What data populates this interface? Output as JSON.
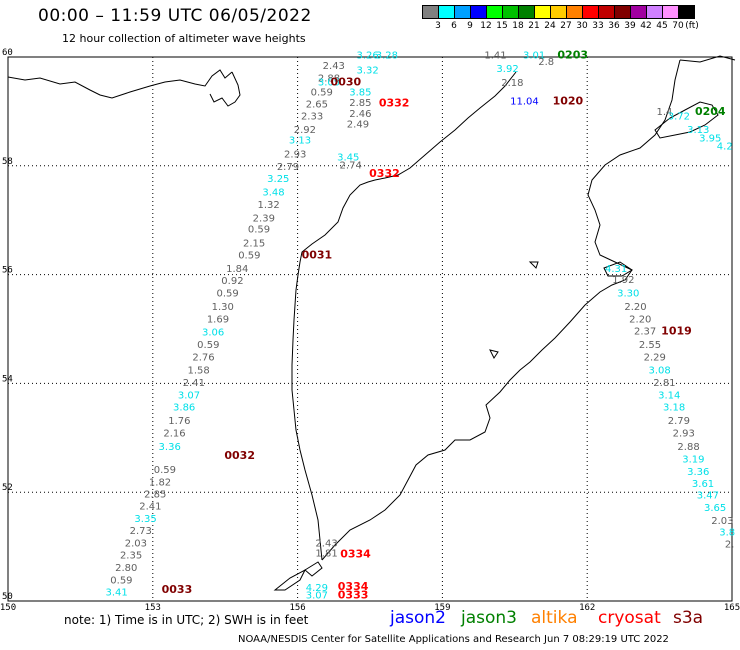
{
  "title": "00:00 – 11:59 UTC 06/05/2022",
  "subtitle": "12 hour collection of altimeter wave heights",
  "legend": {
    "unit": "(ft)",
    "bins": [
      {
        "label": "3",
        "color": "#808080"
      },
      {
        "label": "6",
        "color": "#00ffff"
      },
      {
        "label": "9",
        "color": "#00a0ff"
      },
      {
        "label": "12",
        "color": "#0000ff"
      },
      {
        "label": "15",
        "color": "#00ff00"
      },
      {
        "label": "18",
        "color": "#00c000"
      },
      {
        "label": "21",
        "color": "#008000"
      },
      {
        "label": "24",
        "color": "#ffff00"
      },
      {
        "label": "27",
        "color": "#ffcc00"
      },
      {
        "label": "30",
        "color": "#ff8000"
      },
      {
        "label": "33",
        "color": "#ff0000"
      },
      {
        "label": "36",
        "color": "#c00000"
      },
      {
        "label": "39",
        "color": "#800000"
      },
      {
        "label": "42",
        "color": "#a000a0"
      },
      {
        "label": "45",
        "color": "#d080ff"
      },
      {
        "label": "70",
        "color": "#ff90ff"
      },
      {
        "label": "",
        "color": "#000000"
      }
    ]
  },
  "axes": {
    "lon": {
      "min": 150,
      "max": 165,
      "ticks": [
        "150",
        "153",
        "156",
        "159",
        "162",
        "165"
      ]
    },
    "lat": {
      "min": 50,
      "max": 60,
      "ticks": [
        "60",
        "58",
        "56",
        "54",
        "52",
        "50"
      ]
    }
  },
  "colors": {
    "gray": "#606060",
    "cyan": "#00e0e8",
    "blue": "#0000ff",
    "green": "#008000",
    "maroon": "#800000",
    "red": "#ff0000"
  },
  "chart_data": {
    "type": "scatter",
    "time_labels": [
      {
        "text": "0030",
        "lon": 157.0,
        "lat": 59.48,
        "color": "maroon"
      },
      {
        "text": "0332",
        "lon": 158.0,
        "lat": 59.09,
        "color": "red"
      },
      {
        "text": "0203",
        "lon": 161.7,
        "lat": 59.97,
        "color": "green"
      },
      {
        "text": "1020",
        "lon": 161.6,
        "lat": 59.13,
        "color": "maroon"
      },
      {
        "text": "0204",
        "lon": 164.55,
        "lat": 58.93,
        "color": "green"
      },
      {
        "text": "0332",
        "lon": 157.8,
        "lat": 57.79,
        "color": "red"
      },
      {
        "text": "0031",
        "lon": 156.4,
        "lat": 56.3,
        "color": "maroon"
      },
      {
        "text": "1019",
        "lon": 163.85,
        "lat": 54.9,
        "color": "maroon"
      },
      {
        "text": "0032",
        "lon": 154.8,
        "lat": 52.61,
        "color": "maroon"
      },
      {
        "text": "0334",
        "lon": 157.2,
        "lat": 50.8,
        "color": "red"
      },
      {
        "text": "0033",
        "lon": 153.5,
        "lat": 50.15,
        "color": "maroon"
      },
      {
        "text": "0334",
        "lon": 157.15,
        "lat": 50.2,
        "color": "red"
      },
      {
        "text": "0333",
        "lon": 157.15,
        "lat": 50.05,
        "color": "red"
      }
    ],
    "values": [
      {
        "text": "3.26",
        "lon": 157.45,
        "lat": 59.97,
        "color": "cyan"
      },
      {
        "text": "3.28",
        "lon": 157.85,
        "lat": 59.97,
        "color": "cyan"
      },
      {
        "text": "2.43",
        "lon": 156.75,
        "lat": 59.78,
        "color": "gray"
      },
      {
        "text": "3.32",
        "lon": 157.45,
        "lat": 59.7,
        "color": "cyan"
      },
      {
        "text": "2.88",
        "lon": 156.65,
        "lat": 59.55,
        "color": "gray"
      },
      {
        "text": "3.05",
        "lon": 156.65,
        "lat": 59.48,
        "color": "cyan"
      },
      {
        "text": "0.59",
        "lon": 156.5,
        "lat": 59.29,
        "color": "gray"
      },
      {
        "text": "3.85",
        "lon": 157.3,
        "lat": 59.29,
        "color": "cyan"
      },
      {
        "text": "2.65",
        "lon": 156.4,
        "lat": 59.07,
        "color": "gray"
      },
      {
        "text": "2.85",
        "lon": 157.3,
        "lat": 59.1,
        "color": "gray"
      },
      {
        "text": "2.46",
        "lon": 157.3,
        "lat": 58.9,
        "color": "gray"
      },
      {
        "text": "2.33",
        "lon": 156.3,
        "lat": 58.85,
        "color": "gray"
      },
      {
        "text": "2.49",
        "lon": 157.25,
        "lat": 58.7,
        "color": "gray"
      },
      {
        "text": "2.92",
        "lon": 156.15,
        "lat": 58.6,
        "color": "gray"
      },
      {
        "text": "3.13",
        "lon": 156.05,
        "lat": 58.41,
        "color": "cyan"
      },
      {
        "text": "2.93",
        "lon": 155.95,
        "lat": 58.15,
        "color": "gray"
      },
      {
        "text": "3.45",
        "lon": 157.05,
        "lat": 58.1,
        "color": "cyan"
      },
      {
        "text": "2.74",
        "lon": 157.1,
        "lat": 57.95,
        "color": "gray"
      },
      {
        "text": "2.79",
        "lon": 155.8,
        "lat": 57.92,
        "color": "gray"
      },
      {
        "text": "3.25",
        "lon": 155.6,
        "lat": 57.7,
        "color": "cyan"
      },
      {
        "text": "3.48",
        "lon": 155.5,
        "lat": 57.45,
        "color": "cyan"
      },
      {
        "text": "1.32",
        "lon": 155.4,
        "lat": 57.22,
        "color": "gray"
      },
      {
        "text": "2.39",
        "lon": 155.3,
        "lat": 56.98,
        "color": "gray"
      },
      {
        "text": "0.59",
        "lon": 155.2,
        "lat": 56.77,
        "color": "gray"
      },
      {
        "text": "2.15",
        "lon": 155.1,
        "lat": 56.52,
        "color": "gray"
      },
      {
        "text": "0.59",
        "lon": 155.0,
        "lat": 56.3,
        "color": "gray"
      },
      {
        "text": "1.84",
        "lon": 154.75,
        "lat": 56.05,
        "color": "gray"
      },
      {
        "text": "0.92",
        "lon": 154.65,
        "lat": 55.83,
        "color": "gray"
      },
      {
        "text": "0.59",
        "lon": 154.55,
        "lat": 55.6,
        "color": "gray"
      },
      {
        "text": "1.30",
        "lon": 154.45,
        "lat": 55.35,
        "color": "gray"
      },
      {
        "text": "1.69",
        "lon": 154.35,
        "lat": 55.12,
        "color": "gray"
      },
      {
        "text": "3.06",
        "lon": 154.25,
        "lat": 54.88,
        "color": "cyan"
      },
      {
        "text": "0.59",
        "lon": 154.15,
        "lat": 54.65,
        "color": "gray"
      },
      {
        "text": "2.76",
        "lon": 154.05,
        "lat": 54.42,
        "color": "gray"
      },
      {
        "text": "1.58",
        "lon": 153.95,
        "lat": 54.18,
        "color": "gray"
      },
      {
        "text": "2.41",
        "lon": 153.85,
        "lat": 53.95,
        "color": "gray"
      },
      {
        "text": "3.07",
        "lon": 153.75,
        "lat": 53.72,
        "color": "cyan"
      },
      {
        "text": "3.86",
        "lon": 153.65,
        "lat": 53.5,
        "color": "cyan"
      },
      {
        "text": "1.76",
        "lon": 153.55,
        "lat": 53.25,
        "color": "gray"
      },
      {
        "text": "2.16",
        "lon": 153.45,
        "lat": 53.02,
        "color": "gray"
      },
      {
        "text": "3.36",
        "lon": 153.35,
        "lat": 52.78,
        "color": "cyan"
      },
      {
        "text": "0.59",
        "lon": 153.25,
        "lat": 52.35,
        "color": "gray"
      },
      {
        "text": "1.82",
        "lon": 153.15,
        "lat": 52.12,
        "color": "gray"
      },
      {
        "text": "2.85",
        "lon": 153.05,
        "lat": 51.9,
        "color": "gray"
      },
      {
        "text": "2.41",
        "lon": 152.95,
        "lat": 51.68,
        "color": "gray"
      },
      {
        "text": "3.35",
        "lon": 152.85,
        "lat": 51.45,
        "color": "cyan"
      },
      {
        "text": "2.73",
        "lon": 152.75,
        "lat": 51.23,
        "color": "gray"
      },
      {
        "text": "2.03",
        "lon": 152.65,
        "lat": 51.0,
        "color": "gray"
      },
      {
        "text": "2.35",
        "lon": 152.55,
        "lat": 50.78,
        "color": "gray"
      },
      {
        "text": "2.80",
        "lon": 152.45,
        "lat": 50.55,
        "color": "gray"
      },
      {
        "text": "0.59",
        "lon": 152.35,
        "lat": 50.32,
        "color": "gray"
      },
      {
        "text": "3.41",
        "lon": 152.25,
        "lat": 50.1,
        "color": "cyan"
      },
      {
        "text": "2.43",
        "lon": 156.6,
        "lat": 51.0,
        "color": "gray"
      },
      {
        "text": "1.81",
        "lon": 156.6,
        "lat": 50.82,
        "color": "gray"
      },
      {
        "text": "4.29",
        "lon": 156.4,
        "lat": 50.18,
        "color": "cyan"
      },
      {
        "text": "3.07",
        "lon": 156.4,
        "lat": 50.05,
        "color": "cyan"
      },
      {
        "text": "1.41",
        "lon": 160.1,
        "lat": 59.97,
        "color": "gray"
      },
      {
        "text": "3.01",
        "lon": 160.9,
        "lat": 59.97,
        "color": "cyan"
      },
      {
        "text": "2.8",
        "lon": 161.15,
        "lat": 59.85,
        "color": "gray"
      },
      {
        "text": "3.92",
        "lon": 160.35,
        "lat": 59.72,
        "color": "cyan"
      },
      {
        "text": "2.18",
        "lon": 160.45,
        "lat": 59.47,
        "color": "gray"
      },
      {
        "text": "11.04",
        "lon": 160.7,
        "lat": 59.13,
        "color": "blue"
      },
      {
        "text": "1.4",
        "lon": 163.6,
        "lat": 58.93,
        "color": "gray"
      },
      {
        "text": "3.72",
        "lon": 163.9,
        "lat": 58.85,
        "color": "cyan"
      },
      {
        "text": "3.13",
        "lon": 164.3,
        "lat": 58.6,
        "color": "cyan"
      },
      {
        "text": "3.95",
        "lon": 164.55,
        "lat": 58.45,
        "color": "cyan"
      },
      {
        "text": "4.2",
        "lon": 164.85,
        "lat": 58.3,
        "color": "cyan"
      },
      {
        "text": "4.31",
        "lon": 162.6,
        "lat": 56.05,
        "color": "cyan"
      },
      {
        "text": "1.92",
        "lon": 162.75,
        "lat": 55.85,
        "color": "gray"
      },
      {
        "text": "3.30",
        "lon": 162.85,
        "lat": 55.6,
        "color": "cyan"
      },
      {
        "text": "2.20",
        "lon": 163.0,
        "lat": 55.35,
        "color": "gray"
      },
      {
        "text": "2.20",
        "lon": 163.1,
        "lat": 55.12,
        "color": "gray"
      },
      {
        "text": "2.37",
        "lon": 163.2,
        "lat": 54.9,
        "color": "gray"
      },
      {
        "text": "2.55",
        "lon": 163.3,
        "lat": 54.65,
        "color": "gray"
      },
      {
        "text": "2.29",
        "lon": 163.4,
        "lat": 54.42,
        "color": "gray"
      },
      {
        "text": "3.08",
        "lon": 163.5,
        "lat": 54.18,
        "color": "cyan"
      },
      {
        "text": "2.81",
        "lon": 163.6,
        "lat": 53.95,
        "color": "gray"
      },
      {
        "text": "3.14",
        "lon": 163.7,
        "lat": 53.72,
        "color": "cyan"
      },
      {
        "text": "3.18",
        "lon": 163.8,
        "lat": 53.5,
        "color": "cyan"
      },
      {
        "text": "2.79",
        "lon": 163.9,
        "lat": 53.25,
        "color": "gray"
      },
      {
        "text": "2.93",
        "lon": 164.0,
        "lat": 53.02,
        "color": "gray"
      },
      {
        "text": "2.88",
        "lon": 164.1,
        "lat": 52.78,
        "color": "gray"
      },
      {
        "text": "3.19",
        "lon": 164.2,
        "lat": 52.55,
        "color": "cyan"
      },
      {
        "text": "3.36",
        "lon": 164.3,
        "lat": 52.32,
        "color": "cyan"
      },
      {
        "text": "3.61",
        "lon": 164.4,
        "lat": 52.1,
        "color": "cyan"
      },
      {
        "text": "3.47",
        "lon": 164.5,
        "lat": 51.88,
        "color": "cyan"
      },
      {
        "text": "3.65",
        "lon": 164.65,
        "lat": 51.65,
        "color": "cyan"
      },
      {
        "text": "2.03",
        "lon": 164.8,
        "lat": 51.42,
        "color": "gray"
      },
      {
        "text": "3.8",
        "lon": 164.9,
        "lat": 51.2,
        "color": "cyan"
      },
      {
        "text": "2.",
        "lon": 164.95,
        "lat": 50.98,
        "color": "gray"
      }
    ]
  },
  "note": "note: 1) Time is in UTC; 2) SWH is in feet",
  "missions": [
    {
      "name": "jason2",
      "color": "#0000ff"
    },
    {
      "name": "jason3",
      "color": "#008000"
    },
    {
      "name": "altika",
      "color": "#ff8000"
    },
    {
      "name": "cryosat",
      "color": "#ff0000"
    },
    {
      "name": "s3a",
      "color": "#800000"
    }
  ],
  "credit": "NOAA/NESDIS Center for Satellite Applications and Research   Jun  7 08:29:19 UTC 2022"
}
